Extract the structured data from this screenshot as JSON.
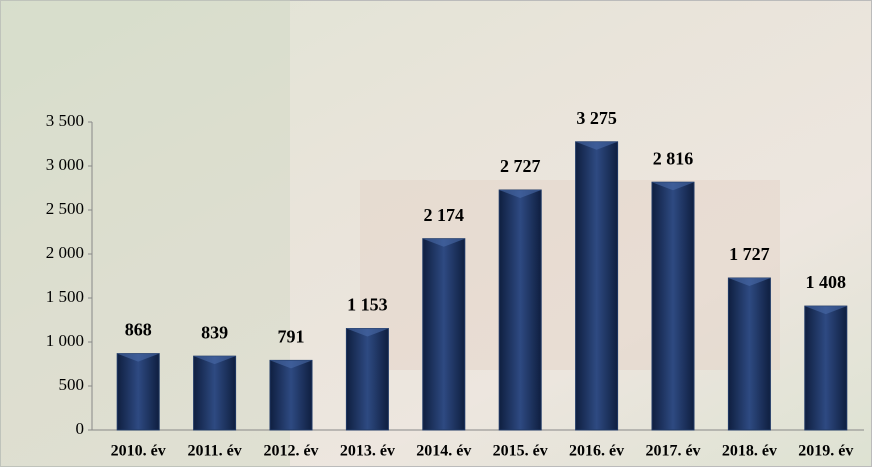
{
  "chart_data": {
    "type": "bar",
    "categories": [
      "2010. év",
      "2011. év",
      "2012. év",
      "2013. év",
      "2014. év",
      "2015. év",
      "2016. év",
      "2017. év",
      "2018. év",
      "2019. év"
    ],
    "values": [
      868,
      839,
      791,
      1153,
      2174,
      2727,
      3275,
      2816,
      1727,
      1408
    ],
    "value_labels": [
      "868",
      "839",
      "791",
      "1 153",
      "2 174",
      "2 727",
      "3 275",
      "2 816",
      "1 727",
      "1 408"
    ],
    "color": "#1f3864",
    "ylim": [
      0,
      3500
    ],
    "yticks": [
      0,
      500,
      {
        "value": 1000,
        "label": "1 000"
      },
      {
        "value": 1500,
        "label": "1 500"
      },
      {
        "value": 2000,
        "label": "2 000"
      },
      {
        "value": 2500,
        "label": "2 500"
      },
      {
        "value": 3000,
        "label": "3 000"
      },
      {
        "value": 3500,
        "label": "3 500"
      }
    ],
    "grid": false
  }
}
